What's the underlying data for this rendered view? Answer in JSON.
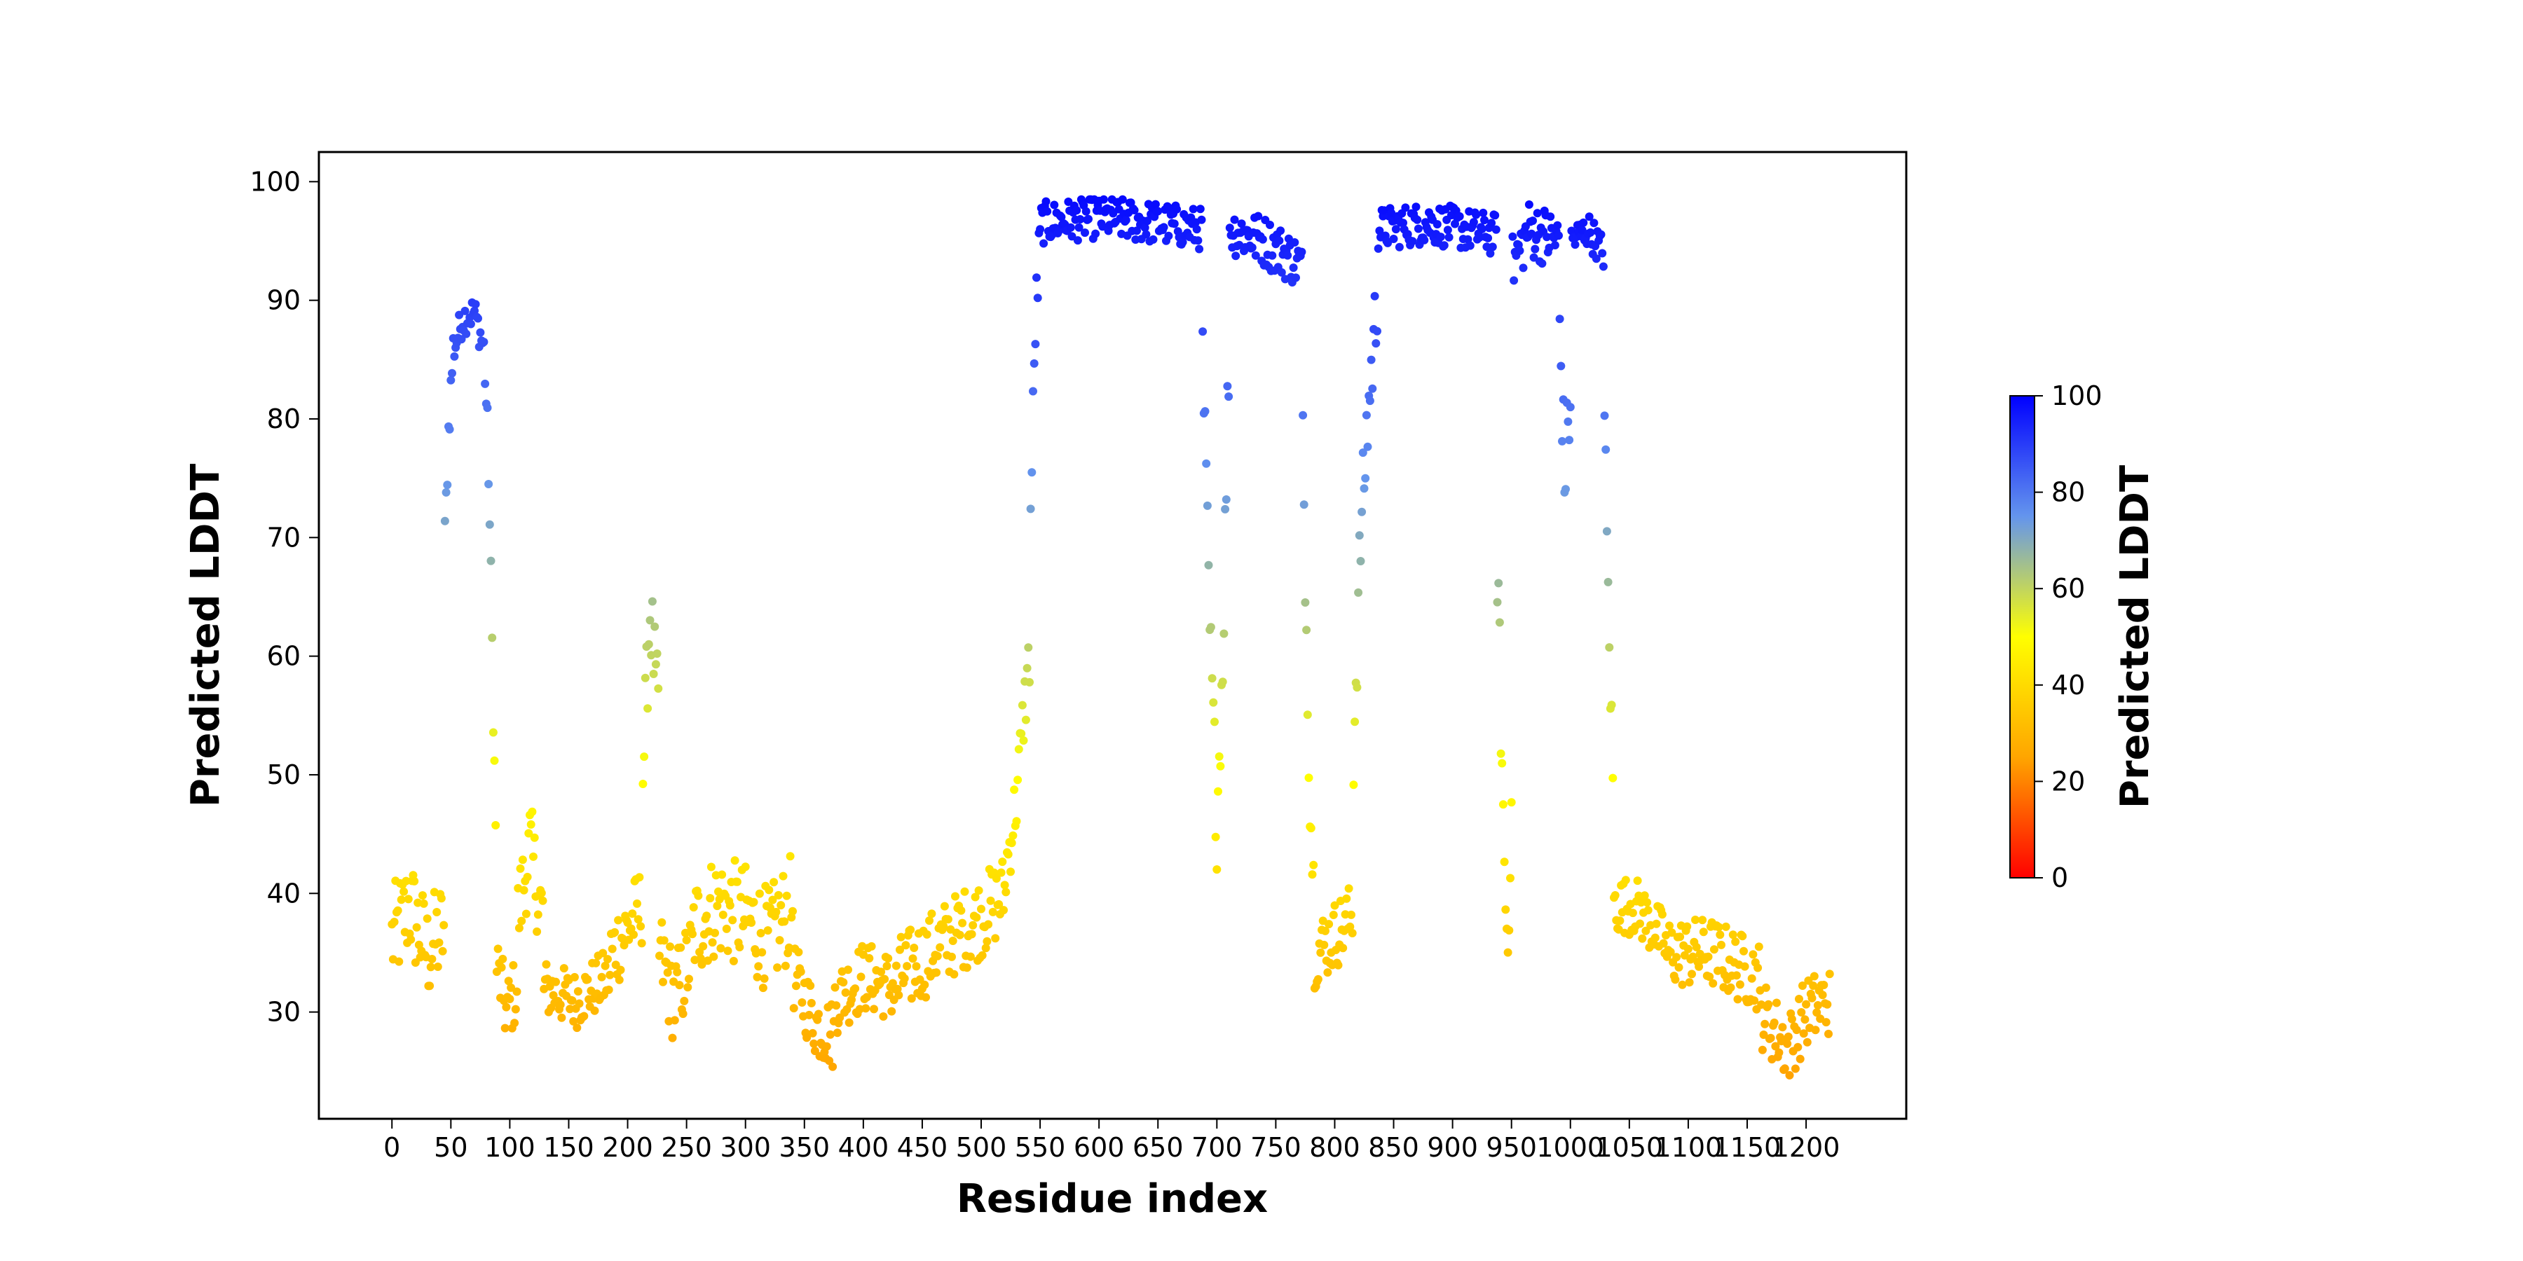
{
  "chart_data": {
    "type": "scatter",
    "title": "",
    "xlabel": "Residue index",
    "ylabel": "Predicted LDDT",
    "xlim": [
      -62,
      1285
    ],
    "ylim": [
      21,
      102.5
    ],
    "x_ticks": [
      0,
      50,
      100,
      150,
      200,
      250,
      300,
      350,
      400,
      450,
      500,
      550,
      600,
      650,
      700,
      750,
      800,
      850,
      900,
      950,
      1000,
      1050,
      1100,
      1150,
      1200
    ],
    "y_ticks": [
      30,
      40,
      50,
      60,
      70,
      80,
      90,
      100
    ],
    "grid": false,
    "colorbar": {
      "label": "Predicted LDDT",
      "range": [
        0,
        100
      ],
      "ticks": [
        0,
        20,
        40,
        60,
        80,
        100
      ],
      "colors": [
        "#ff0000",
        "#ffa500",
        "#ffff00",
        "#6495ed",
        "#0000ff"
      ]
    },
    "segments": [
      {
        "from": 0,
        "to": 44,
        "profile": [
          [
            0,
            36
          ],
          [
            15,
            39
          ],
          [
            30,
            35
          ],
          [
            44,
            37
          ]
        ],
        "spread": 4.5
      },
      {
        "from": 45,
        "to": 52,
        "profile": [
          [
            45,
            70
          ],
          [
            48,
            79
          ],
          [
            52,
            86
          ]
        ],
        "spread": 2
      },
      {
        "from": 53,
        "to": 78,
        "profile": [
          [
            53,
            86
          ],
          [
            60,
            88.5
          ],
          [
            70,
            89
          ],
          [
            78,
            86
          ]
        ],
        "spread": 1.5
      },
      {
        "from": 79,
        "to": 88,
        "profile": [
          [
            79,
            84
          ],
          [
            82,
            76
          ],
          [
            84,
            66
          ],
          [
            86,
            56
          ],
          [
            88,
            45
          ]
        ],
        "spread": 2.5
      },
      {
        "from": 89,
        "to": 106,
        "profile": [
          [
            89,
            34
          ],
          [
            97,
            30
          ],
          [
            106,
            32
          ]
        ],
        "spread": 3
      },
      {
        "from": 107,
        "to": 128,
        "profile": [
          [
            107,
            38
          ],
          [
            117,
            44
          ],
          [
            128,
            38
          ]
        ],
        "spread": 4
      },
      {
        "from": 129,
        "to": 185,
        "profile": [
          [
            129,
            32
          ],
          [
            155,
            31
          ],
          [
            185,
            33
          ]
        ],
        "spread": 2.5
      },
      {
        "from": 186,
        "to": 212,
        "profile": [
          [
            186,
            35
          ],
          [
            200,
            37
          ],
          [
            212,
            39
          ]
        ],
        "spread": 3.5
      },
      {
        "from": 213,
        "to": 226,
        "profile": [
          [
            213,
            50
          ],
          [
            219,
            64
          ],
          [
            226,
            55
          ]
        ],
        "spread": 4
      },
      {
        "from": 227,
        "to": 255,
        "profile": [
          [
            227,
            35
          ],
          [
            240,
            31
          ],
          [
            255,
            35
          ]
        ],
        "spread": 4
      },
      {
        "from": 256,
        "to": 340,
        "profile": [
          [
            256,
            37
          ],
          [
            275,
            39
          ],
          [
            300,
            38
          ],
          [
            320,
            36
          ],
          [
            340,
            39
          ]
        ],
        "spread": 4.5
      },
      {
        "from": 341,
        "to": 375,
        "profile": [
          [
            341,
            33
          ],
          [
            360,
            29
          ],
          [
            375,
            28
          ]
        ],
        "spread": 3
      },
      {
        "from": 376,
        "to": 430,
        "profile": [
          [
            376,
            31
          ],
          [
            400,
            33
          ],
          [
            430,
            32
          ]
        ],
        "spread": 3
      },
      {
        "from": 431,
        "to": 520,
        "profile": [
          [
            431,
            33
          ],
          [
            470,
            36
          ],
          [
            500,
            38
          ],
          [
            520,
            40
          ]
        ],
        "spread": 3.5
      },
      {
        "from": 521,
        "to": 541,
        "profile": [
          [
            521,
            42
          ],
          [
            530,
            48
          ],
          [
            536,
            55
          ],
          [
            541,
            60
          ]
        ],
        "spread": 3
      },
      {
        "from": 542,
        "to": 550,
        "profile": [
          [
            542,
            72
          ],
          [
            546,
            88
          ],
          [
            550,
            95
          ]
        ],
        "spread": 3
      },
      {
        "from": 551,
        "to": 687,
        "profile": [
          [
            551,
            96.5
          ],
          [
            600,
            97
          ],
          [
            650,
            96.5
          ],
          [
            687,
            96
          ]
        ],
        "spread": 1.8
      },
      {
        "from": 688,
        "to": 710,
        "profile": [
          [
            688,
            85
          ],
          [
            694,
            62
          ],
          [
            700,
            46
          ],
          [
            705,
            60
          ],
          [
            710,
            85
          ]
        ],
        "spread": 4
      },
      {
        "from": 711,
        "to": 772,
        "profile": [
          [
            711,
            96
          ],
          [
            740,
            95
          ],
          [
            772,
            93
          ]
        ],
        "spread": 2.2
      },
      {
        "from": 773,
        "to": 782,
        "profile": [
          [
            773,
            78
          ],
          [
            776,
            62
          ],
          [
            779,
            48
          ],
          [
            782,
            41
          ]
        ],
        "spread": 3
      },
      {
        "from": 783,
        "to": 815,
        "profile": [
          [
            783,
            35
          ],
          [
            795,
            36
          ],
          [
            815,
            38
          ]
        ],
        "spread": 3
      },
      {
        "from": 816,
        "to": 836,
        "profile": [
          [
            816,
            52
          ],
          [
            822,
            70
          ],
          [
            828,
            80
          ],
          [
            836,
            90
          ]
        ],
        "spread": 4
      },
      {
        "from": 837,
        "to": 937,
        "profile": [
          [
            837,
            96
          ],
          [
            880,
            96.5
          ],
          [
            937,
            95.5
          ]
        ],
        "spread": 1.8
      },
      {
        "from": 938,
        "to": 950,
        "profile": [
          [
            938,
            68
          ],
          [
            941,
            55
          ],
          [
            944,
            42
          ],
          [
            947,
            35
          ],
          [
            950,
            50
          ]
        ],
        "spread": 4
      },
      {
        "from": 951,
        "to": 990,
        "profile": [
          [
            951,
            93
          ],
          [
            965,
            96
          ],
          [
            990,
            95
          ]
        ],
        "spread": 2.5
      },
      {
        "from": 991,
        "to": 1000,
        "profile": [
          [
            991,
            88
          ],
          [
            995,
            75
          ],
          [
            1000,
            82
          ]
        ],
        "spread": 4
      },
      {
        "from": 1001,
        "to": 1028,
        "profile": [
          [
            1001,
            95
          ],
          [
            1015,
            96
          ],
          [
            1028,
            94
          ]
        ],
        "spread": 1.5
      },
      {
        "from": 1029,
        "to": 1036,
        "profile": [
          [
            1029,
            80
          ],
          [
            1032,
            65
          ],
          [
            1036,
            50
          ]
        ],
        "spread": 3
      },
      {
        "from": 1037,
        "to": 1080,
        "profile": [
          [
            1037,
            39
          ],
          [
            1055,
            39
          ],
          [
            1080,
            36
          ]
        ],
        "spread": 2.5
      },
      {
        "from": 1081,
        "to": 1160,
        "profile": [
          [
            1081,
            35
          ],
          [
            1120,
            35
          ],
          [
            1160,
            33
          ]
        ],
        "spread": 3
      },
      {
        "from": 1161,
        "to": 1220,
        "profile": [
          [
            1161,
            30
          ],
          [
            1185,
            27
          ],
          [
            1200,
            30
          ],
          [
            1220,
            31
          ]
        ],
        "spread": 3
      }
    ],
    "marker_size": 6
  }
}
